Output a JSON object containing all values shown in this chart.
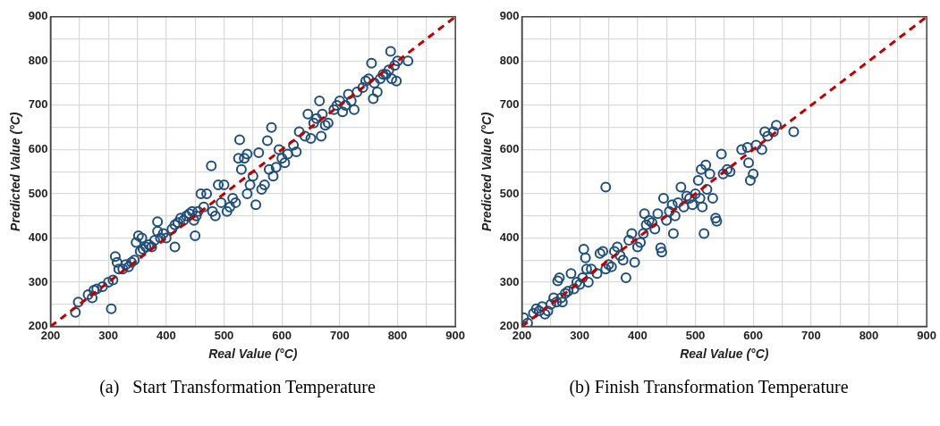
{
  "chart_data": [
    {
      "type": "scatter",
      "xlabel": "Real Value (°C)",
      "ylabel": "Predicted Value (°C)",
      "annotations": [
        "(a)   Start Transformation Temperature"
      ],
      "xlim": [
        200,
        900
      ],
      "ylim": [
        200,
        900
      ],
      "xticks": [
        200,
        {
          "value": 250,
          "label": null
        },
        300,
        {
          "value": 350,
          "label": null
        },
        400,
        {
          "value": 450,
          "label": null
        },
        500,
        {
          "value": 550,
          "label": null
        },
        600,
        {
          "value": 650,
          "label": null
        },
        700,
        {
          "value": 750,
          "label": null
        },
        800,
        {
          "value": 850,
          "label": null
        },
        900
      ],
      "yticks": [
        200,
        {
          "value": 250,
          "label": null
        },
        300,
        {
          "value": 350,
          "label": null
        },
        400,
        {
          "value": 450,
          "label": null
        },
        500,
        {
          "value": 550,
          "label": null
        },
        600,
        {
          "value": 650,
          "label": null
        },
        700,
        {
          "value": 750,
          "label": null
        },
        800,
        {
          "value": 850,
          "label": null
        },
        900
      ],
      "grid": true,
      "marker": "circle",
      "series": [
        {
          "color": "#1f4e79",
          "x": [
            243,
            248,
            265,
            272,
            275,
            280,
            290,
            300,
            305,
            308,
            312,
            315,
            318,
            325,
            330,
            335,
            340,
            345,
            348,
            352,
            355,
            358,
            360,
            365,
            370,
            375,
            380,
            385,
            385,
            390,
            395,
            400,
            410,
            415,
            415,
            420,
            425,
            430,
            435,
            440,
            445,
            448,
            450,
            452,
            455,
            460,
            465,
            470,
            478,
            480,
            485,
            490,
            495,
            500,
            505,
            510,
            515,
            520,
            525,
            527,
            530,
            535,
            540,
            540,
            545,
            550,
            555,
            560,
            565,
            570,
            575,
            578,
            582,
            585,
            590,
            595,
            600,
            605,
            610,
            620,
            625,
            630,
            640,
            645,
            650,
            655,
            660,
            665,
            668,
            670,
            675,
            680,
            690,
            695,
            700,
            705,
            710,
            715,
            720,
            725,
            730,
            740,
            745,
            750,
            755,
            758,
            760,
            765,
            770,
            775,
            780,
            785,
            788,
            790,
            795,
            798,
            800,
            818
          ],
          "values": [
            232,
            255,
            272,
            265,
            282,
            285,
            290,
            300,
            240,
            305,
            358,
            345,
            330,
            330,
            340,
            335,
            345,
            350,
            390,
            405,
            370,
            400,
            375,
            380,
            385,
            380,
            395,
            437,
            415,
            400,
            410,
            400,
            420,
            380,
            430,
            435,
            445,
            440,
            450,
            455,
            460,
            440,
            405,
            450,
            460,
            500,
            470,
            500,
            563,
            460,
            450,
            520,
            480,
            520,
            460,
            470,
            490,
            480,
            580,
            622,
            555,
            580,
            500,
            590,
            520,
            540,
            475,
            593,
            510,
            520,
            620,
            555,
            650,
            540,
            560,
            600,
            580,
            570,
            590,
            610,
            595,
            640,
            630,
            680,
            625,
            660,
            670,
            710,
            630,
            680,
            655,
            660,
            690,
            700,
            710,
            685,
            700,
            725,
            710,
            690,
            730,
            740,
            755,
            760,
            795,
            715,
            750,
            730,
            760,
            770,
            770,
            780,
            822,
            760,
            790,
            755,
            800,
            800
          ]
        },
        {
          "type": "line",
          "marker": "none",
          "color": "#c00000",
          "line_style": "dashed",
          "x": [
            200,
            900
          ],
          "values": [
            200,
            900
          ]
        }
      ]
    },
    {
      "type": "scatter",
      "xlabel": "Real Value (°C)",
      "ylabel": "Predicted Value (°C)",
      "annotations": [
        "(b) Finish Transformation Temperature"
      ],
      "xlim": [
        200,
        900
      ],
      "ylim": [
        200,
        900
      ],
      "xticks": [
        200,
        {
          "value": 250,
          "label": null
        },
        300,
        {
          "value": 350,
          "label": null
        },
        400,
        {
          "value": 450,
          "label": null
        },
        500,
        {
          "value": 550,
          "label": null
        },
        600,
        {
          "value": 650,
          "label": null
        },
        700,
        {
          "value": 750,
          "label": null
        },
        800,
        {
          "value": 850,
          "label": null
        },
        900
      ],
      "yticks": [
        200,
        {
          "value": 250,
          "label": null
        },
        300,
        {
          "value": 350,
          "label": null
        },
        400,
        {
          "value": 450,
          "label": null
        },
        500,
        {
          "value": 550,
          "label": null
        },
        600,
        {
          "value": 650,
          "label": null
        },
        700,
        {
          "value": 750,
          "label": null
        },
        800,
        {
          "value": 850,
          "label": null
        },
        900
      ],
      "grid": true,
      "marker": "circle",
      "series": [
        {
          "color": "#1f4e79",
          "x": [
            203,
            210,
            220,
            225,
            230,
            235,
            240,
            245,
            250,
            255,
            260,
            262,
            265,
            268,
            270,
            275,
            280,
            285,
            290,
            295,
            300,
            305,
            307,
            310,
            312,
            315,
            320,
            330,
            335,
            340,
            345,
            345,
            350,
            355,
            360,
            365,
            370,
            375,
            380,
            385,
            390,
            395,
            400,
            405,
            410,
            412,
            415,
            420,
            425,
            430,
            435,
            440,
            442,
            445,
            450,
            455,
            460,
            462,
            465,
            470,
            475,
            480,
            485,
            490,
            495,
            500,
            505,
            508,
            510,
            512,
            515,
            518,
            520,
            525,
            530,
            535,
            537,
            545,
            548,
            555,
            560,
            580,
            590,
            592,
            595,
            600,
            605,
            615,
            620,
            625,
            635,
            640,
            670
          ],
          "values": [
            220,
            208,
            230,
            240,
            235,
            245,
            228,
            235,
            250,
            265,
            255,
            303,
            310,
            265,
            255,
            275,
            280,
            320,
            285,
            300,
            295,
            310,
            375,
            355,
            330,
            300,
            330,
            320,
            365,
            370,
            515,
            330,
            340,
            335,
            370,
            380,
            360,
            350,
            310,
            395,
            410,
            345,
            380,
            390,
            410,
            455,
            430,
            440,
            435,
            420,
            455,
            378,
            368,
            490,
            440,
            460,
            475,
            410,
            450,
            480,
            515,
            470,
            495,
            490,
            475,
            500,
            530,
            490,
            555,
            470,
            410,
            565,
            510,
            545,
            490,
            445,
            438,
            590,
            545,
            555,
            550,
            600,
            605,
            570,
            530,
            545,
            610,
            600,
            640,
            630,
            640,
            655,
            640
          ]
        },
        {
          "type": "line",
          "marker": "none",
          "color": "#c00000",
          "line_style": "dashed",
          "x": [
            200,
            900
          ],
          "values": [
            200,
            900
          ]
        }
      ]
    }
  ]
}
